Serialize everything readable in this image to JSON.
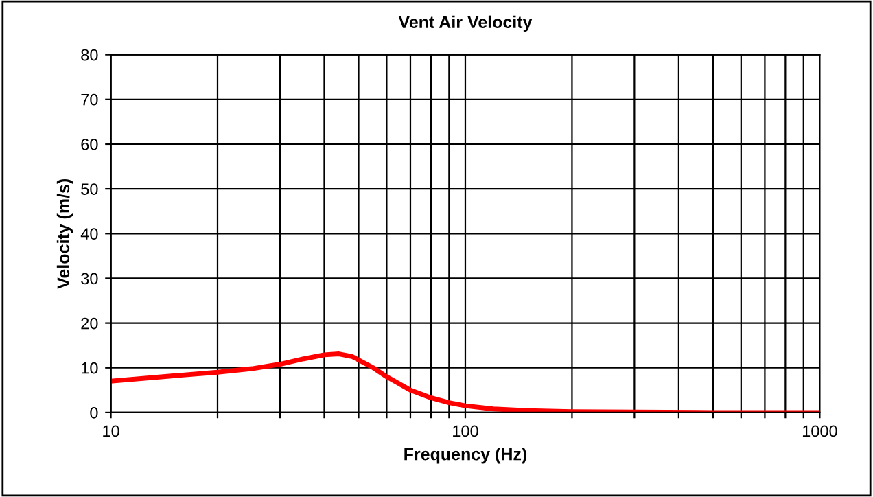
{
  "chart_data": {
    "type": "line",
    "title": "Vent Air Velocity",
    "xlabel": "Frequency (Hz)",
    "ylabel": "Velocity (m/s)",
    "log": "x",
    "xlim": [
      10,
      1000
    ],
    "ylim": [
      0,
      80
    ],
    "xticks": [
      10,
      {
        "value": 20,
        "label": null
      },
      {
        "value": 30,
        "label": null
      },
      {
        "value": 40,
        "label": null
      },
      {
        "value": 50,
        "label": null
      },
      {
        "value": 60,
        "label": null
      },
      {
        "value": 70,
        "label": null
      },
      {
        "value": 80,
        "label": null
      },
      {
        "value": 90,
        "label": null
      },
      100,
      {
        "value": 200,
        "label": null
      },
      {
        "value": 300,
        "label": null
      },
      {
        "value": 400,
        "label": null
      },
      {
        "value": 500,
        "label": null
      },
      {
        "value": 600,
        "label": null
      },
      {
        "value": 700,
        "label": null
      },
      {
        "value": 800,
        "label": null
      },
      {
        "value": 900,
        "label": null
      },
      1000
    ],
    "yticks": [
      0,
      10,
      20,
      30,
      40,
      50,
      60,
      70,
      80
    ],
    "grid": true,
    "marker": "none",
    "line_style": "solid",
    "x": [
      10,
      15,
      20,
      25,
      30,
      35,
      40,
      44,
      48,
      55,
      60,
      70,
      80,
      90,
      100,
      120,
      150,
      200,
      300,
      500,
      1000
    ],
    "series": [
      {
        "color": "#ff0000",
        "values": [
          7,
          8.2,
          9,
          9.8,
          10.8,
          12,
          12.9,
          13.1,
          12.5,
          10,
          8,
          5,
          3.3,
          2.2,
          1.5,
          0.8,
          0.4,
          0.2,
          0.1,
          0,
          0
        ]
      }
    ]
  }
}
